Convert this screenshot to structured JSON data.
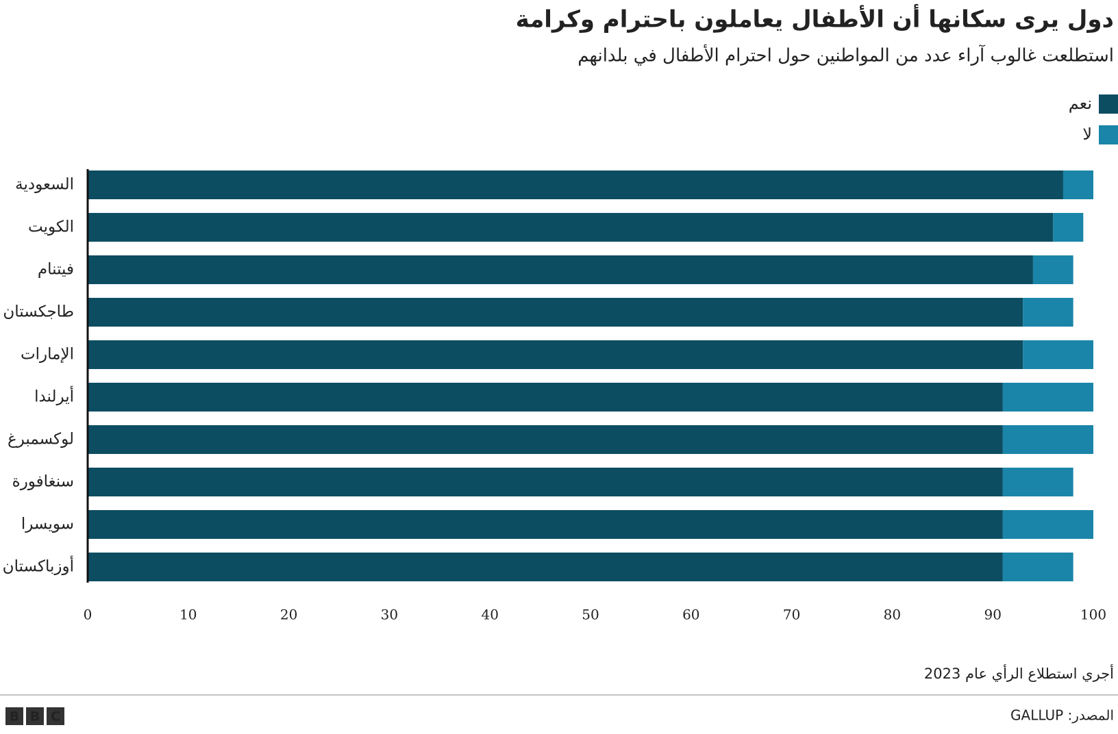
{
  "chart_data": {
    "type": "stacked-barh",
    "title": "دول يرى سكانها أن الأطفال يعاملون باحترام وكرامة",
    "subtitle": "استطلعت غالوب آراء عدد من المواطنين حول احترام الأطفال في بلدانهم",
    "categories": [
      "السعودية",
      "الكويت",
      "فيتنام",
      "طاجكستان",
      "الإمارات",
      "أيرلندا",
      "لوكسمبرغ",
      "سنغافورة",
      "سويسرا",
      "أوزباكستان"
    ],
    "series": [
      {
        "name": "نعم",
        "color": "#0d4d62",
        "values": [
          97,
          96,
          94,
          93,
          93,
          91,
          91,
          91,
          91,
          91
        ]
      },
      {
        "name": "لا",
        "color": "#1a85a8",
        "values": [
          3,
          3,
          4,
          5,
          7,
          9,
          9,
          7,
          9,
          7
        ]
      }
    ],
    "xlim": [
      0,
      100
    ],
    "xticks": [
      0,
      10,
      20,
      30,
      40,
      50,
      60,
      70,
      80,
      90,
      100
    ],
    "legend": "top-right",
    "note": "أجري استطلاع الرأي عام 2023",
    "source": "المصدر: GALLUP"
  },
  "footer": {
    "logo_letters": [
      "B",
      "B",
      "C"
    ]
  }
}
